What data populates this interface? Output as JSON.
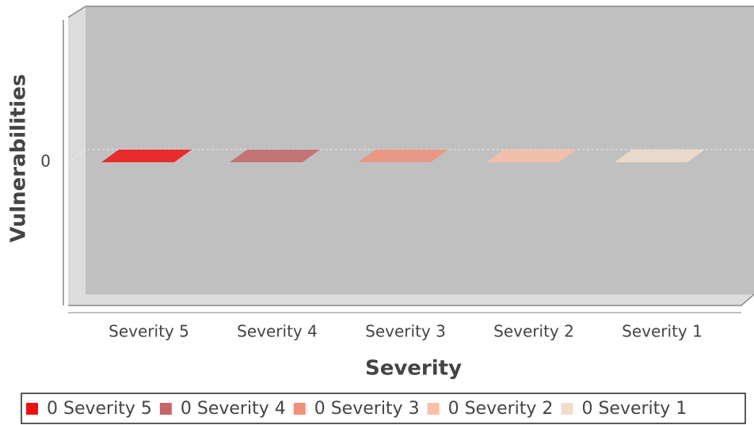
{
  "chart_data": {
    "type": "bar",
    "x_label": "Severity",
    "y_label": "Vulnerabilities",
    "categories": [
      "Severity 5",
      "Severity 4",
      "Severity 3",
      "Severity 2",
      "Severity 1"
    ],
    "values": [
      0,
      0,
      0,
      0,
      0
    ],
    "colors": [
      "#ee1111",
      "#c46666",
      "#f0907a",
      "#f8c0a8",
      "#f0ddcc"
    ],
    "ylim": [
      -1,
      1
    ],
    "yticks": [
      0
    ],
    "grid": true,
    "legend": "bottom"
  }
}
